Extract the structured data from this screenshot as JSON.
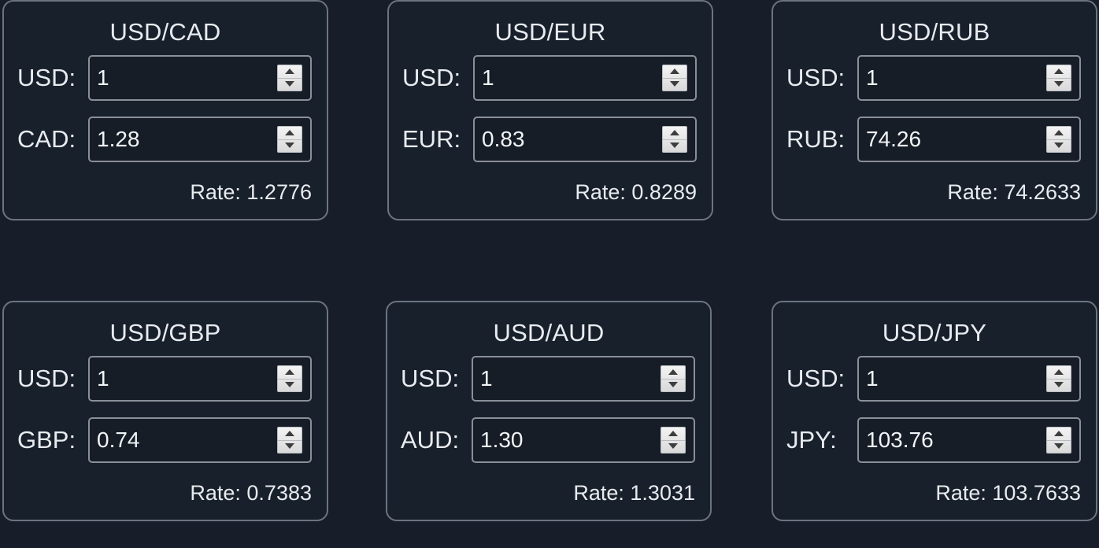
{
  "cards": [
    {
      "title": "USD/CAD",
      "base_label": "USD:",
      "base_value": "1",
      "quote_label": "CAD:",
      "quote_value": "1.28",
      "rate": "Rate: 1.2776"
    },
    {
      "title": "USD/EUR",
      "base_label": "USD:",
      "base_value": "1",
      "quote_label": "EUR:",
      "quote_value": "0.83",
      "rate": "Rate: 0.8289"
    },
    {
      "title": "USD/RUB",
      "base_label": "USD:",
      "base_value": "1",
      "quote_label": "RUB:",
      "quote_value": "74.26",
      "rate": "Rate: 74.2633"
    },
    {
      "title": "USD/GBP",
      "base_label": "USD:",
      "base_value": "1",
      "quote_label": "GBP:",
      "quote_value": "0.74",
      "rate": "Rate: 0.7383"
    },
    {
      "title": "USD/AUD",
      "base_label": "USD:",
      "base_value": "1",
      "quote_label": "AUD:",
      "quote_value": "1.30",
      "rate": "Rate: 1.3031"
    },
    {
      "title": "USD/JPY",
      "base_label": "USD:",
      "base_value": "1",
      "quote_label": "JPY:",
      "quote_value": "103.76",
      "rate": "Rate: 103.7633"
    }
  ],
  "icons": {
    "spinner": "up-down-arrows-icon"
  },
  "colors": {
    "background": "#171e29",
    "border": "#6c7480",
    "text": "#e8ebef"
  }
}
